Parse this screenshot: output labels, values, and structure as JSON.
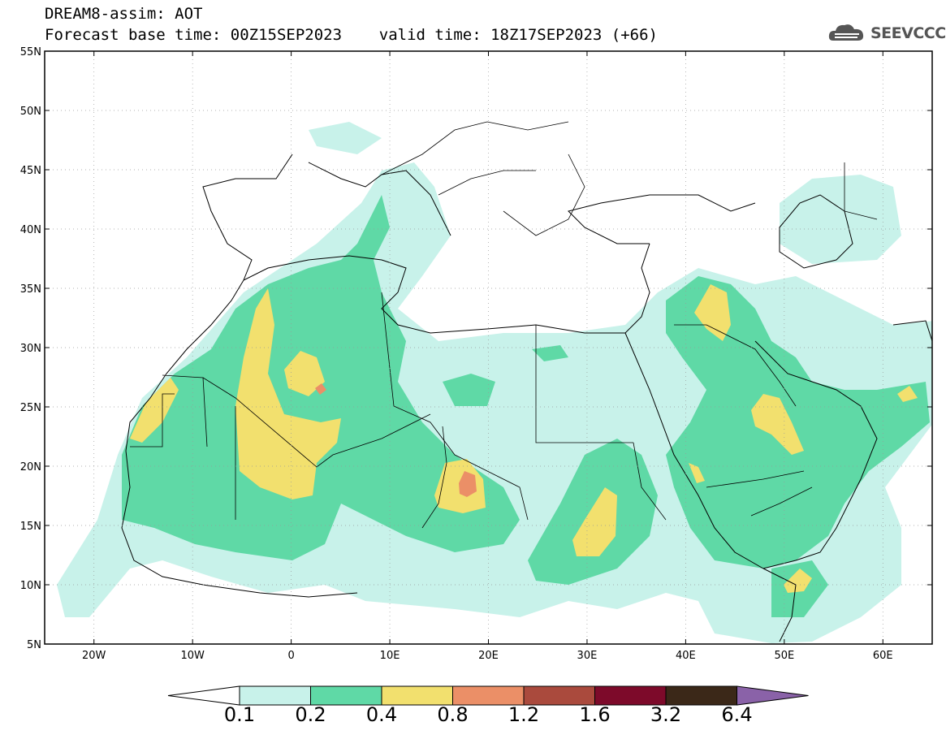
{
  "header": {
    "line1": "DREAM8-assim: AOT",
    "line2": "Forecast base time: 00Z15SEP2023    valid time: 18Z17SEP2023 (+66)"
  },
  "logo": {
    "text": "SEEVCCC",
    "icon": "cloud-icon",
    "color": "#555555"
  },
  "map": {
    "lat_ticks": [
      "55N",
      "50N",
      "45N",
      "40N",
      "35N",
      "30N",
      "25N",
      "20N",
      "15N",
      "10N",
      "5N"
    ],
    "lat_values": [
      55,
      50,
      45,
      40,
      35,
      30,
      25,
      20,
      15,
      10,
      5
    ],
    "lon_ticks": [
      "20W",
      "10W",
      "0",
      "10E",
      "20E",
      "30E",
      "40E",
      "50E",
      "60E"
    ],
    "lon_values": [
      -20,
      -10,
      0,
      10,
      20,
      30,
      40,
      50,
      60
    ],
    "extent": {
      "lon_min": -25,
      "lon_max": 65,
      "lat_min": 5,
      "lat_max": 55
    }
  },
  "colorbar": {
    "labels": [
      "0.1",
      "0.2",
      "0.4",
      "0.8",
      "1.2",
      "1.6",
      "3.2",
      "6.4"
    ],
    "colors": [
      "#ffffff",
      "#c8f2ea",
      "#5fd9a6",
      "#f2e06e",
      "#eb8f67",
      "#aa4a3d",
      "#7d0a2a",
      "#3b2818",
      "#8a62a8"
    ]
  }
}
